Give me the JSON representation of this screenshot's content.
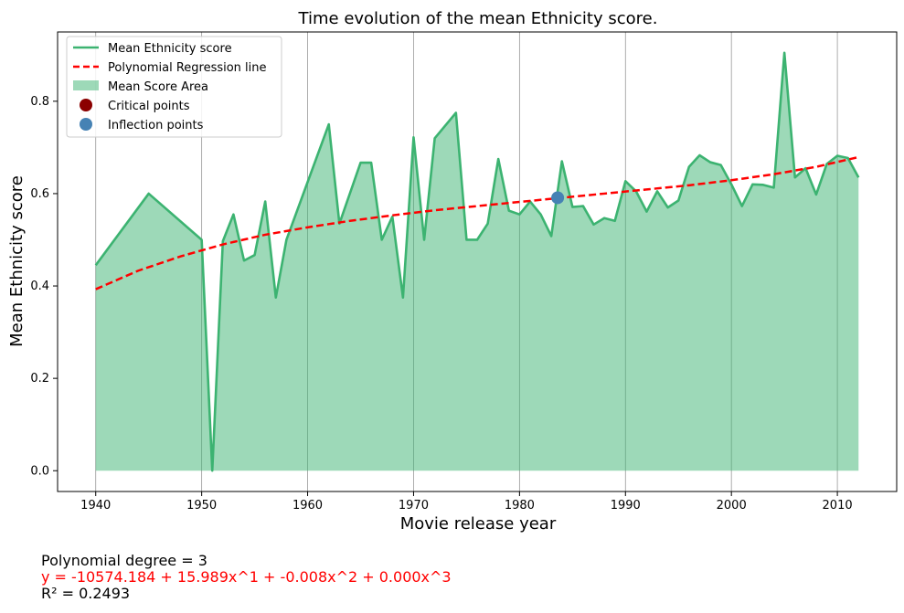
{
  "colors": {
    "line": "#3cb371",
    "fill": "#3cb371",
    "regression": "#ff0000",
    "critical": "#8b0000",
    "inflection": "#4682b4",
    "grid": "#808080"
  },
  "chart_data": {
    "type": "line",
    "title": "Time evolution of the mean Ethnicity score.",
    "xlabel": "Movie release year",
    "ylabel": "Mean Ethnicity score",
    "xlim": [
      1936.4,
      2015.6
    ],
    "ylim": [
      -0.045,
      0.95
    ],
    "xticks": [
      1940,
      1950,
      1960,
      1970,
      1980,
      1990,
      2000,
      2010
    ],
    "yticks": [
      0.0,
      0.2,
      0.4,
      0.6,
      0.8
    ],
    "ytick_labels": [
      "0.0",
      "0.2",
      "0.4",
      "0.6",
      "0.8"
    ],
    "grid": "vertical lines at x ticks",
    "legend_position": "upper-left",
    "legend": [
      {
        "label": "Mean Ethnicity score",
        "kind": "line"
      },
      {
        "label": "Polynomial Regression line",
        "kind": "dashed"
      },
      {
        "label": "Mean Score Area",
        "kind": "area"
      },
      {
        "label": "Critical points",
        "kind": "marker-critical"
      },
      {
        "label": "Inflection points",
        "kind": "marker-inflection"
      }
    ],
    "series": [
      {
        "name": "Mean Ethnicity score",
        "x": [
          1940,
          1945,
          1950,
          1951,
          1952,
          1953,
          1954,
          1955,
          1956,
          1957,
          1958,
          1962,
          1963,
          1965,
          1966,
          1967,
          1968,
          1969,
          1970,
          1971,
          1972,
          1974,
          1975,
          1976,
          1977,
          1978,
          1979,
          1980,
          1981,
          1982,
          1983,
          1984,
          1985,
          1986,
          1987,
          1988,
          1989,
          1990,
          1991,
          1992,
          1993,
          1994,
          1995,
          1996,
          1997,
          1998,
          1999,
          2000,
          2001,
          2002,
          2003,
          2004,
          2005,
          2006,
          2007,
          2008,
          2009,
          2010,
          2011,
          2012
        ],
        "y": [
          0.445,
          0.6,
          0.5,
          0.0,
          0.497,
          0.555,
          0.455,
          0.467,
          0.583,
          0.375,
          0.5,
          0.75,
          0.535,
          0.667,
          0.667,
          0.5,
          0.55,
          0.375,
          0.722,
          0.5,
          0.72,
          0.775,
          0.5,
          0.5,
          0.535,
          0.675,
          0.563,
          0.555,
          0.583,
          0.555,
          0.508,
          0.67,
          0.571,
          0.573,
          0.533,
          0.547,
          0.541,
          0.627,
          0.605,
          0.561,
          0.605,
          0.57,
          0.585,
          0.658,
          0.683,
          0.668,
          0.662,
          0.62,
          0.573,
          0.62,
          0.619,
          0.613,
          0.905,
          0.635,
          0.655,
          0.598,
          0.664,
          0.682,
          0.677,
          0.635
        ]
      },
      {
        "name": "Polynomial Regression line",
        "x": [
          1940,
          1944,
          1948,
          1952,
          1956,
          1960,
          1964,
          1968,
          1972,
          1976,
          1980,
          1984,
          1988,
          1992,
          1996,
          2000,
          2004,
          2008,
          2012
        ],
        "y": [
          0.393,
          0.433,
          0.464,
          0.49,
          0.511,
          0.527,
          0.541,
          0.553,
          0.564,
          0.573,
          0.582,
          0.591,
          0.6,
          0.609,
          0.618,
          0.629,
          0.642,
          0.658,
          0.679
        ]
      }
    ],
    "critical_points": [],
    "inflection_points": [
      {
        "x": 1983.6,
        "y": 0.591
      }
    ]
  },
  "annotations": {
    "degree_text": "Polynomial degree = 3",
    "equation_text": "y = -10574.184 + 15.989x^1 + -0.008x^2 + 0.000x^3",
    "r2_text": "R² = 0.2493"
  }
}
